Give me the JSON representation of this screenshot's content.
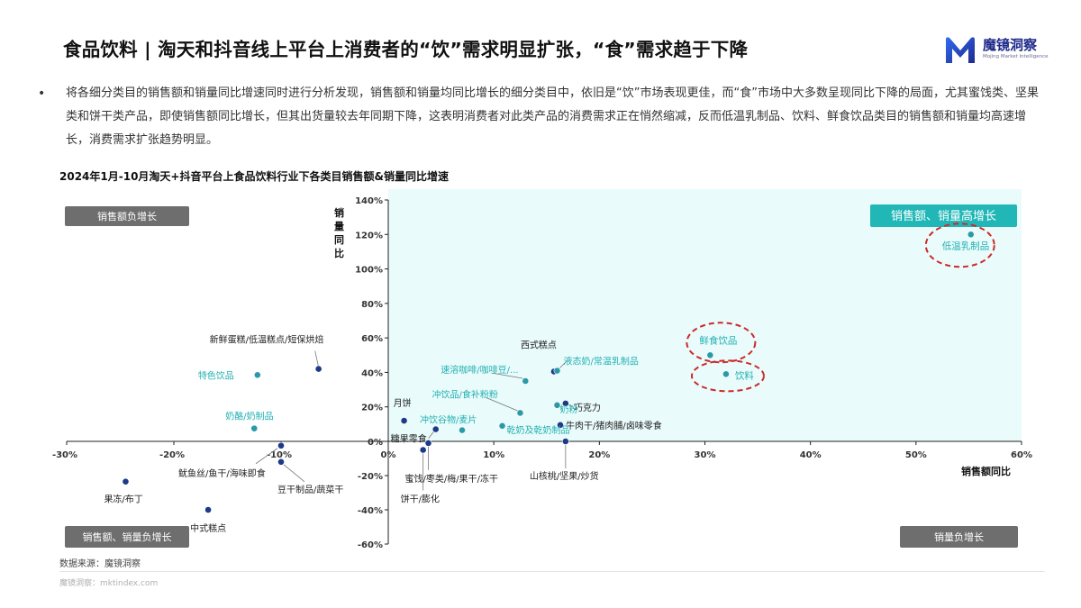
{
  "header": {
    "title": "食品饮料 | 淘天和抖音线上平台上消费者的“饮”需求明显扩张，“食”需求趋于下降",
    "logo_name": "魔镜洞察",
    "logo_sub": "Mojing Market Intelligence"
  },
  "bullet": {
    "text": "将各细分类目的销售额和销量同比增速同时进行分析发现，销售额和销量均同比增长的细分类目中，依旧是“饮”市场表现更佳，而“食”市场中大多数呈现同比下降的局面，尤其蜜饯类、坚果类和饼干类产品，即使销售额同比增长，但其出货量较去年同期下降，这表明消费者对此类产品的消费需求正在悄然缩减，反而低温乳制品、饮料、鲜食饮品类目的销售额和销量均高速增长，消费需求扩张趋势明显。"
  },
  "chart_data": {
    "type": "scatter",
    "title": "2024年1月-10月淘天+抖音平台上食品饮料行业下各类目销售额&销量同比增速",
    "xlabel": "销售额同比",
    "ylabel": "销量同比",
    "xlim": [
      -0.3,
      0.6
    ],
    "ylim": [
      -0.6,
      1.4
    ],
    "x_ticks": [
      "-30%",
      "-20%",
      "-10%",
      "0%",
      "10%",
      "20%",
      "30%",
      "40%",
      "50%",
      "60%"
    ],
    "y_ticks": [
      "140%",
      "120%",
      "100%",
      "80%",
      "60%",
      "40%",
      "20%",
      "0%",
      "-20%",
      "-40%",
      "-60%"
    ],
    "quadrant_labels": {
      "top_left": "销售额负增长",
      "top_right": "销售额、销量高增长",
      "bottom_left": "销售额、销量负增长",
      "bottom_right": "销量负增长"
    },
    "points": [
      {
        "label": "低温乳制品",
        "x": 0.552,
        "y": 1.2,
        "highlight": true,
        "circled": true
      },
      {
        "label": "鲜食饮品",
        "x": 0.305,
        "y": 0.5,
        "highlight": true,
        "circled": true
      },
      {
        "label": "饮料",
        "x": 0.32,
        "y": 0.39,
        "highlight": true,
        "circled": true
      },
      {
        "label": "新鲜蛋糕/低温糕点/短保烘焙",
        "x": -0.065,
        "y": 0.42,
        "highlight": false
      },
      {
        "label": "特色饮品",
        "x": -0.122,
        "y": 0.385,
        "highlight": true
      },
      {
        "label": "奶酪/奶制品",
        "x": -0.125,
        "y": 0.075,
        "highlight": true
      },
      {
        "label": "西式糕点",
        "x": 0.157,
        "y": 0.405,
        "highlight": false
      },
      {
        "label": "液态奶/常温乳制品",
        "x": 0.16,
        "y": 0.41,
        "highlight": true
      },
      {
        "label": "速溶咖啡/咖啡豆/...",
        "x": 0.13,
        "y": 0.35,
        "highlight": true
      },
      {
        "label": "冲饮品/食补粉粉",
        "x": 0.125,
        "y": 0.165,
        "highlight": true
      },
      {
        "label": "巧克力",
        "x": 0.168,
        "y": 0.22,
        "highlight": false
      },
      {
        "label": "奶粉",
        "x": 0.16,
        "y": 0.21,
        "highlight": true
      },
      {
        "label": "月饼",
        "x": 0.015,
        "y": 0.12,
        "highlight": false
      },
      {
        "label": "冲饮谷物/麦片",
        "x": 0.07,
        "y": 0.065,
        "highlight": true
      },
      {
        "label": "牛肉干/猪肉脯/卤味零食",
        "x": 0.163,
        "y": 0.095,
        "highlight": false
      },
      {
        "label": "乾奶及乾奶制品",
        "x": 0.108,
        "y": 0.09,
        "highlight": true
      },
      {
        "label": "糖果零食",
        "x": 0.045,
        "y": 0.07,
        "highlight": false
      },
      {
        "label": "蜜饯/枣类/梅/果干/冻干",
        "x": 0.038,
        "y": -0.01,
        "highlight": false
      },
      {
        "label": "饼干/膨化",
        "x": 0.033,
        "y": -0.05,
        "highlight": false
      },
      {
        "label": "山核桃/坚果/炒货",
        "x": 0.168,
        "y": 0.0,
        "highlight": false
      },
      {
        "label": "鱿鱼丝/鱼干/海味即食",
        "x": -0.1,
        "y": -0.025,
        "highlight": false
      },
      {
        "label": "豆干制品/蔬菜干",
        "x": -0.1,
        "y": -0.12,
        "highlight": false
      },
      {
        "label": "果冻/布丁",
        "x": -0.245,
        "y": -0.235,
        "highlight": false
      },
      {
        "label": "中式糕点",
        "x": -0.168,
        "y": -0.4,
        "highlight": false
      }
    ],
    "colors": {
      "dot_dark": "#1c3a88",
      "dot_teal": "#2a9aa8",
      "label_teal": "#22b0b2",
      "quadrant_fill": "#eafbfb",
      "quadrant_badge": "#6e6e6e",
      "quadrant_badge_teal": "#22b7b7",
      "circle": "#cc2a2a"
    }
  },
  "source": {
    "text": "数据来源：魔镜洞察",
    "footer": "魔镜洞察：mktindex.com"
  }
}
